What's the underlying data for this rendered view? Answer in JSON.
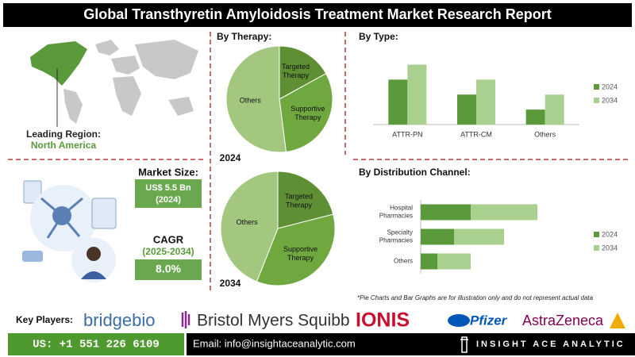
{
  "header": {
    "title": "Global Transthyretin Amyloidosis Treatment Market Research Report"
  },
  "left_panel": {
    "leading_region_label": "Leading Region:",
    "leading_region": "North America",
    "market_size_label": "Market Size:",
    "market_size": "US$ 5.5 Bn",
    "market_size_year": "(2024)",
    "cagr_label": "CAGR",
    "cagr_period": "(2025-2034)",
    "cagr": "8.0%"
  },
  "chart_data": [
    {
      "type": "pie",
      "title": "By Therapy:",
      "label": "2024",
      "categories": [
        "Targeted Therapy",
        "Supportive Therapy",
        "Others"
      ],
      "values": [
        17,
        31,
        52
      ],
      "colors": [
        "#5e8f35",
        "#6fa83f",
        "#a3c77f"
      ]
    },
    {
      "type": "pie",
      "label": "2034",
      "categories": [
        "Targeted Therapy",
        "Supportive Therapy",
        "Others"
      ],
      "values": [
        21,
        35,
        44
      ],
      "colors": [
        "#5e8f35",
        "#6fa83f",
        "#a3c77f"
      ]
    },
    {
      "type": "bar",
      "title": "By Type:",
      "categories": [
        "ATTR-PN",
        "ATTR-CM",
        "Others"
      ],
      "series": [
        {
          "name": "2024",
          "color": "#5b9a3a",
          "values": [
            3,
            2,
            1
          ]
        },
        {
          "name": "2034",
          "color": "#a9d08e",
          "values": [
            4,
            3,
            2
          ]
        }
      ],
      "ylim": [
        0,
        4.5
      ]
    },
    {
      "type": "hbar",
      "stacked": true,
      "title": "By Distribution Channel:",
      "categories": [
        "Hospital Pharmacies",
        "Specialty Pharmacies",
        "Others"
      ],
      "series": [
        {
          "name": "2024",
          "color": "#5b9a3a",
          "values": [
            3,
            2,
            1
          ]
        },
        {
          "name": "2034",
          "color": "#a9d08e",
          "values": [
            4,
            3,
            2
          ]
        }
      ],
      "xlim": [
        0,
        10
      ]
    }
  ],
  "note": "*Pie Charts and Bar Graphs are for illustration only and do not represent actual data",
  "key_players": {
    "label": "Key Players:",
    "companies": [
      "bridgebio",
      "Bristol Myers Squibb",
      "IONIS",
      "Pfizer",
      "AstraZeneca"
    ]
  },
  "footer": {
    "phone": "US: +1 551 226 6109",
    "email": "Email: info@insightaceanalytic.com",
    "brand": "INSIGHT ACE ANALYTIC"
  }
}
